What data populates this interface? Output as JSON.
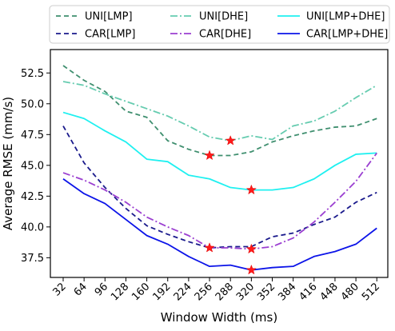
{
  "chart_data": {
    "type": "line",
    "xlabel": "Window Width (ms)",
    "ylabel": "Average RMSE (mm/s)",
    "categories": [
      "32",
      "64",
      "96",
      "128",
      "160",
      "192",
      "224",
      "256",
      "288",
      "320",
      "352",
      "384",
      "416",
      "448",
      "480",
      "512"
    ],
    "ylim": [
      35.9,
      54.4
    ],
    "yticks": [
      "37.5",
      "40.0",
      "42.5",
      "45.0",
      "47.5",
      "50.0",
      "52.5"
    ],
    "legend_position": "top",
    "grid": false,
    "series": [
      {
        "name": "UNI[LMP]",
        "color": "#3f8f6f",
        "dash": "6,4",
        "values": [
          53.1,
          51.9,
          51.0,
          49.4,
          48.9,
          47.0,
          46.3,
          45.8,
          45.8,
          46.1,
          46.9,
          47.4,
          47.8,
          48.1,
          48.2,
          48.8
        ],
        "best": {
          "index": 7,
          "value": 45.8
        }
      },
      {
        "name": "UNI[DHE]",
        "color": "#66ccb0",
        "dash": "9,3,2,3",
        "values": [
          51.8,
          51.5,
          50.8,
          50.2,
          49.6,
          49.0,
          48.2,
          47.3,
          47.0,
          47.4,
          47.1,
          48.2,
          48.6,
          49.4,
          50.5,
          51.5
        ],
        "best": {
          "index": 8,
          "value": 47.0
        }
      },
      {
        "name": "UNI[LMP+DHE]",
        "color": "#1ff0f0",
        "dash": "",
        "values": [
          49.3,
          48.8,
          47.8,
          46.9,
          45.5,
          45.3,
          44.2,
          43.9,
          43.2,
          43.0,
          43.0,
          43.2,
          43.9,
          45.0,
          45.9,
          46.0
        ],
        "best": {
          "index": 9,
          "value": 43.0
        }
      },
      {
        "name": "CAR[LMP]",
        "color": "#1a1a8c",
        "dash": "6,4",
        "values": [
          48.2,
          45.2,
          43.2,
          41.5,
          40.1,
          39.4,
          38.8,
          38.3,
          38.4,
          38.4,
          39.2,
          39.5,
          40.2,
          40.8,
          42.0,
          42.8
        ],
        "best": {
          "index": 7,
          "value": 38.3
        }
      },
      {
        "name": "CAR[DHE]",
        "color": "#9b3fd1",
        "dash": "9,3,2,3",
        "values": [
          44.4,
          43.8,
          43.0,
          42.0,
          40.8,
          40.0,
          39.3,
          38.3,
          38.3,
          38.2,
          38.4,
          39.1,
          40.4,
          42.0,
          43.7,
          46.0
        ],
        "best": {
          "index": 9,
          "value": 38.2
        }
      },
      {
        "name": "CAR[LMP+DHE]",
        "color": "#0c14e8",
        "dash": "",
        "values": [
          43.9,
          42.7,
          41.9,
          40.6,
          39.3,
          38.6,
          37.6,
          36.8,
          36.9,
          36.5,
          36.7,
          36.8,
          37.6,
          38.0,
          38.6,
          39.9
        ],
        "best": {
          "index": 9,
          "value": 36.5
        }
      }
    ]
  }
}
